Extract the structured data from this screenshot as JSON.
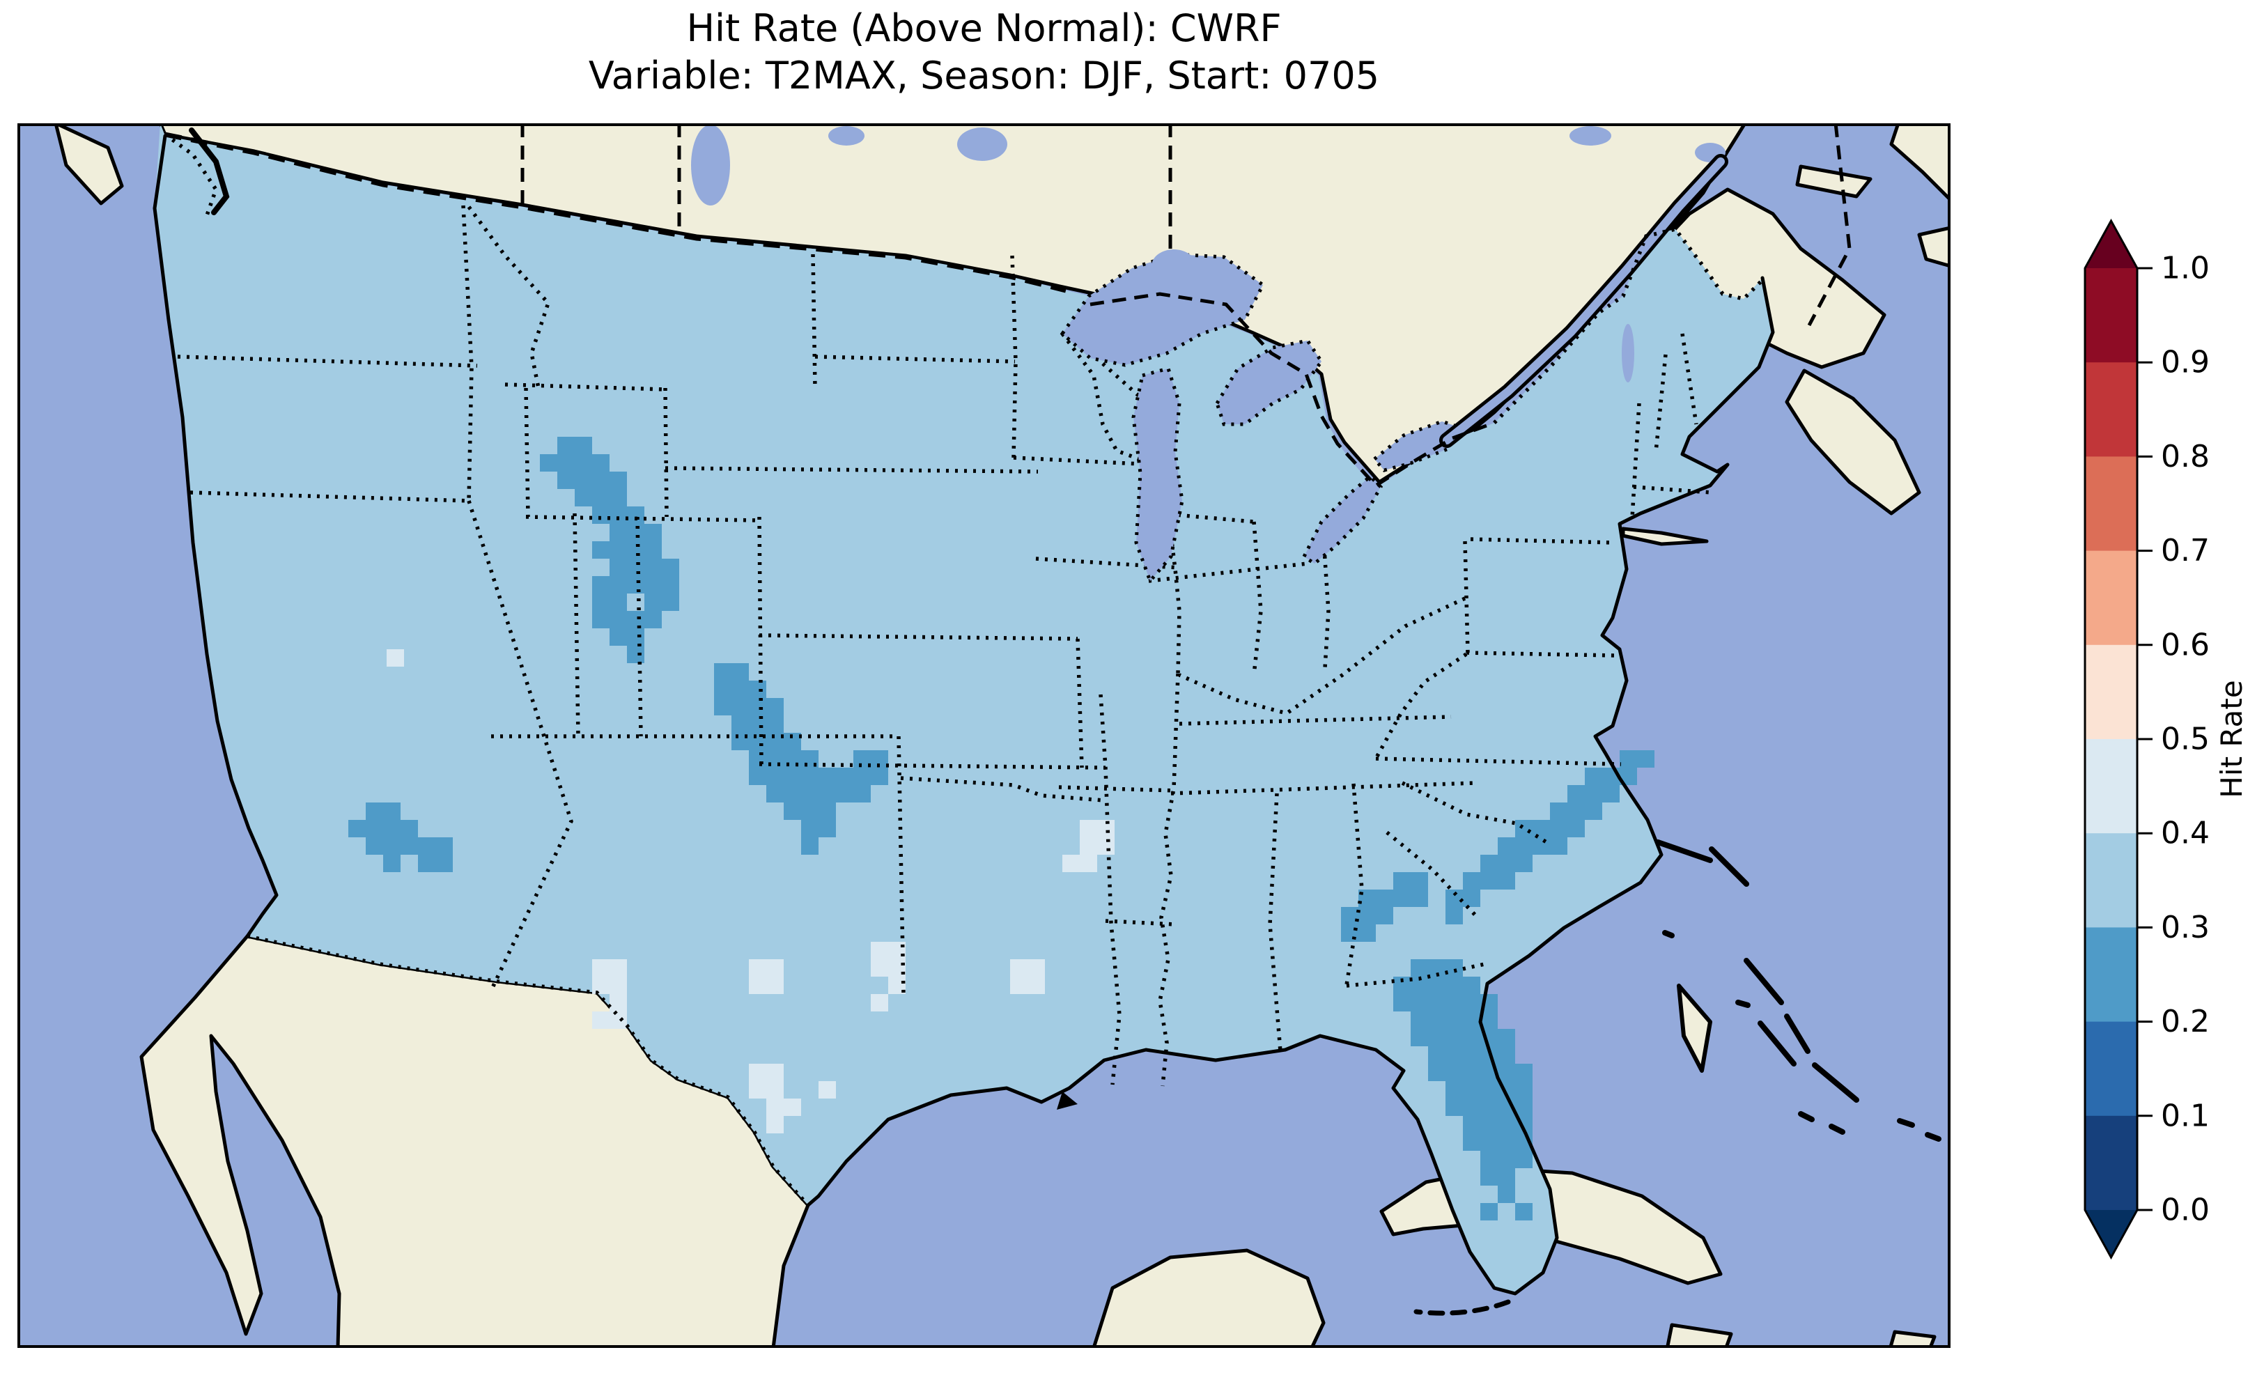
{
  "title": {
    "line1": "Hit Rate (Above Normal): CWRF",
    "line2": "Variable: T2MAX, Season: DJF, Start: 0705"
  },
  "colorbar": {
    "label": "Hit Rate",
    "ticks": [
      "1.0",
      "0.9",
      "0.8",
      "0.7",
      "0.6",
      "0.5",
      "0.4",
      "0.3",
      "0.2",
      "0.1",
      "0.0"
    ],
    "segment_colors_top_to_bottom": [
      "#8e0c25",
      "#c13639",
      "#dc6e57",
      "#f4a98a",
      "#fbe3d4",
      "#dbe9f2",
      "#a3cce3",
      "#4f9bc8",
      "#2b6bae",
      "#16407c"
    ],
    "over_color": "#67001f",
    "under_color": "#053061"
  },
  "map_colors": {
    "ocean": "#94aadb",
    "land": "#f0eedb",
    "us_base_bin_03_04": "#a3cce3",
    "dark_bin_02_03": "#4f9bc8",
    "light_bin_04_05": "#dbe9f2"
  },
  "cells": {
    "size": 25,
    "dark": [
      [
        775,
        450
      ],
      [
        800,
        450
      ],
      [
        750,
        475
      ],
      [
        775,
        475
      ],
      [
        800,
        475
      ],
      [
        825,
        475
      ],
      [
        775,
        500
      ],
      [
        800,
        500
      ],
      [
        825,
        500
      ],
      [
        850,
        500
      ],
      [
        800,
        525
      ],
      [
        825,
        525
      ],
      [
        850,
        525
      ],
      [
        825,
        550
      ],
      [
        850,
        550
      ],
      [
        875,
        550
      ],
      [
        850,
        575
      ],
      [
        875,
        575
      ],
      [
        900,
        575
      ],
      [
        825,
        600
      ],
      [
        850,
        600
      ],
      [
        875,
        600
      ],
      [
        900,
        600
      ],
      [
        850,
        625
      ],
      [
        875,
        625
      ],
      [
        900,
        625
      ],
      [
        925,
        625
      ],
      [
        825,
        650
      ],
      [
        850,
        650
      ],
      [
        875,
        650
      ],
      [
        900,
        650
      ],
      [
        925,
        650
      ],
      [
        825,
        675
      ],
      [
        850,
        675
      ],
      [
        900,
        675
      ],
      [
        925,
        675
      ],
      [
        825,
        700
      ],
      [
        850,
        700
      ],
      [
        875,
        700
      ],
      [
        900,
        700
      ],
      [
        850,
        725
      ],
      [
        875,
        725
      ],
      [
        875,
        750
      ],
      [
        1000,
        775
      ],
      [
        1025,
        775
      ],
      [
        1000,
        800
      ],
      [
        1025,
        800
      ],
      [
        1050,
        800
      ],
      [
        1000,
        825
      ],
      [
        1025,
        825
      ],
      [
        1050,
        825
      ],
      [
        1075,
        825
      ],
      [
        1025,
        850
      ],
      [
        1050,
        850
      ],
      [
        1075,
        850
      ],
      [
        1025,
        875
      ],
      [
        1050,
        875
      ],
      [
        1075,
        875
      ],
      [
        1100,
        875
      ],
      [
        1050,
        900
      ],
      [
        1075,
        900
      ],
      [
        1100,
        900
      ],
      [
        1125,
        900
      ],
      [
        1200,
        900
      ],
      [
        1225,
        900
      ],
      [
        1050,
        925
      ],
      [
        1075,
        925
      ],
      [
        1100,
        925
      ],
      [
        1125,
        925
      ],
      [
        1150,
        925
      ],
      [
        1175,
        925
      ],
      [
        1200,
        925
      ],
      [
        1225,
        925
      ],
      [
        1075,
        950
      ],
      [
        1100,
        950
      ],
      [
        1125,
        950
      ],
      [
        1150,
        950
      ],
      [
        1175,
        950
      ],
      [
        1200,
        950
      ],
      [
        1100,
        975
      ],
      [
        1125,
        975
      ],
      [
        1150,
        975
      ],
      [
        1125,
        1000
      ],
      [
        1150,
        1000
      ],
      [
        1125,
        1025
      ],
      [
        500,
        975
      ],
      [
        525,
        975
      ],
      [
        475,
        1000
      ],
      [
        500,
        1000
      ],
      [
        525,
        1000
      ],
      [
        550,
        1000
      ],
      [
        500,
        1025
      ],
      [
        525,
        1025
      ],
      [
        550,
        1025
      ],
      [
        575,
        1025
      ],
      [
        600,
        1025
      ],
      [
        525,
        1050
      ],
      [
        575,
        1050
      ],
      [
        600,
        1050
      ],
      [
        1975,
        1075
      ],
      [
        2000,
        1075
      ],
      [
        1925,
        1100
      ],
      [
        1950,
        1100
      ],
      [
        1975,
        1100
      ],
      [
        2000,
        1100
      ],
      [
        1900,
        1125
      ],
      [
        1925,
        1125
      ],
      [
        1950,
        1125
      ],
      [
        1900,
        1150
      ],
      [
        1925,
        1150
      ],
      [
        2300,
        900
      ],
      [
        2325,
        900
      ],
      [
        2250,
        925
      ],
      [
        2275,
        925
      ],
      [
        2300,
        925
      ],
      [
        2225,
        950
      ],
      [
        2250,
        950
      ],
      [
        2275,
        950
      ],
      [
        2200,
        975
      ],
      [
        2225,
        975
      ],
      [
        2250,
        975
      ],
      [
        2150,
        1000
      ],
      [
        2175,
        1000
      ],
      [
        2200,
        1000
      ],
      [
        2225,
        1000
      ],
      [
        2125,
        1025
      ],
      [
        2150,
        1025
      ],
      [
        2175,
        1025
      ],
      [
        2200,
        1025
      ],
      [
        2100,
        1050
      ],
      [
        2125,
        1050
      ],
      [
        2150,
        1050
      ],
      [
        2075,
        1075
      ],
      [
        2100,
        1075
      ],
      [
        2125,
        1075
      ],
      [
        2050,
        1100
      ],
      [
        2075,
        1100
      ],
      [
        2050,
        1125
      ],
      [
        2000,
        1200
      ],
      [
        2025,
        1200
      ],
      [
        2050,
        1200
      ],
      [
        1975,
        1225
      ],
      [
        2000,
        1225
      ],
      [
        2025,
        1225
      ],
      [
        2050,
        1225
      ],
      [
        2075,
        1225
      ],
      [
        1975,
        1250
      ],
      [
        2000,
        1250
      ],
      [
        2025,
        1250
      ],
      [
        2050,
        1250
      ],
      [
        2075,
        1250
      ],
      [
        2100,
        1250
      ],
      [
        2000,
        1275
      ],
      [
        2025,
        1275
      ],
      [
        2050,
        1275
      ],
      [
        2075,
        1275
      ],
      [
        2100,
        1275
      ],
      [
        2000,
        1300
      ],
      [
        2025,
        1300
      ],
      [
        2050,
        1300
      ],
      [
        2075,
        1300
      ],
      [
        2100,
        1300
      ],
      [
        2125,
        1300
      ],
      [
        2025,
        1325
      ],
      [
        2050,
        1325
      ],
      [
        2075,
        1325
      ],
      [
        2100,
        1325
      ],
      [
        2125,
        1325
      ],
      [
        2025,
        1350
      ],
      [
        2050,
        1350
      ],
      [
        2075,
        1350
      ],
      [
        2100,
        1350
      ],
      [
        2125,
        1350
      ],
      [
        2150,
        1350
      ],
      [
        2050,
        1375
      ],
      [
        2075,
        1375
      ],
      [
        2100,
        1375
      ],
      [
        2125,
        1375
      ],
      [
        2150,
        1375
      ],
      [
        2050,
        1400
      ],
      [
        2075,
        1400
      ],
      [
        2100,
        1400
      ],
      [
        2125,
        1400
      ],
      [
        2150,
        1400
      ],
      [
        2075,
        1425
      ],
      [
        2100,
        1425
      ],
      [
        2125,
        1425
      ],
      [
        2150,
        1425
      ],
      [
        2075,
        1450
      ],
      [
        2100,
        1450
      ],
      [
        2125,
        1450
      ],
      [
        2150,
        1450
      ],
      [
        2100,
        1475
      ],
      [
        2125,
        1475
      ],
      [
        2150,
        1475
      ],
      [
        2100,
        1500
      ],
      [
        2125,
        1500
      ],
      [
        2125,
        1525
      ],
      [
        2100,
        1550
      ],
      [
        2150,
        1550
      ]
    ],
    "light": [
      [
        530,
        755
      ],
      [
        1525,
        1000
      ],
      [
        1550,
        1000
      ],
      [
        1525,
        1025
      ],
      [
        1550,
        1025
      ],
      [
        1500,
        1050
      ],
      [
        1525,
        1050
      ],
      [
        825,
        1200
      ],
      [
        850,
        1200
      ],
      [
        825,
        1225
      ],
      [
        850,
        1225
      ],
      [
        850,
        1250
      ],
      [
        825,
        1275
      ],
      [
        850,
        1275
      ],
      [
        1050,
        1200
      ],
      [
        1075,
        1200
      ],
      [
        1050,
        1225
      ],
      [
        1075,
        1225
      ],
      [
        1225,
        1175
      ],
      [
        1250,
        1175
      ],
      [
        1225,
        1200
      ],
      [
        1250,
        1200
      ],
      [
        1250,
        1225
      ],
      [
        1225,
        1250
      ],
      [
        1425,
        1200
      ],
      [
        1450,
        1200
      ],
      [
        1425,
        1225
      ],
      [
        1450,
        1225
      ],
      [
        1050,
        1350
      ],
      [
        1075,
        1350
      ],
      [
        1050,
        1375
      ],
      [
        1075,
        1375
      ],
      [
        1075,
        1400
      ],
      [
        1100,
        1400
      ],
      [
        1075,
        1425
      ],
      [
        1150,
        1375
      ]
    ]
  },
  "chart_data": {
    "type": "heatmap",
    "title": "Hit Rate (Above Normal): CWRF",
    "subtitle": "Variable: T2MAX, Season: DJF, Start: 0705",
    "model": "CWRF",
    "variable": "T2MAX",
    "season": "DJF",
    "start": "0705",
    "metric": "Hit Rate (Above Normal)",
    "map_extent": "Contiguous United States (CONUS) with surrounding Canada, Mexico, Caribbean",
    "colorbar_label": "Hit Rate",
    "colorbar_ticks": [
      1.0,
      0.9,
      0.8,
      0.7,
      0.6,
      0.5,
      0.4,
      0.3,
      0.2,
      0.1,
      0.0
    ],
    "colorbar_extend": "both",
    "legend_position": "right",
    "grid": false,
    "bins": [
      {
        "range": [
          0.9,
          1.0
        ],
        "color": "#8e0c25"
      },
      {
        "range": [
          0.8,
          0.9
        ],
        "color": "#c13639"
      },
      {
        "range": [
          0.7,
          0.8
        ],
        "color": "#dc6e57"
      },
      {
        "range": [
          0.6,
          0.7
        ],
        "color": "#f4a98a"
      },
      {
        "range": [
          0.5,
          0.6
        ],
        "color": "#fbe3d4"
      },
      {
        "range": [
          0.4,
          0.5
        ],
        "color": "#dbe9f2"
      },
      {
        "range": [
          0.3,
          0.4
        ],
        "color": "#a3cce3"
      },
      {
        "range": [
          0.2,
          0.3
        ],
        "color": "#4f9bc8"
      },
      {
        "range": [
          0.1,
          0.2
        ],
        "color": "#2b6bae"
      },
      {
        "range": [
          0.0,
          0.1
        ],
        "color": "#16407c"
      }
    ],
    "regions": [
      {
        "area": "most of CONUS",
        "hit_rate_bin": "0.3-0.4"
      },
      {
        "area": "Wyoming into northwest Colorado (Rockies band)",
        "hit_rate_bin": "0.2-0.3"
      },
      {
        "area": "central Kansas into Oklahoma band",
        "hit_rate_bin": "0.2-0.3"
      },
      {
        "area": "west-central Arizona patch",
        "hit_rate_bin": "0.2-0.3"
      },
      {
        "area": "central Georgia band",
        "hit_rate_bin": "0.2-0.3"
      },
      {
        "area": "Carolinas coastal strip",
        "hit_rate_bin": "0.2-0.3"
      },
      {
        "area": "Florida peninsula",
        "hit_rate_bin": "0.2-0.3"
      },
      {
        "area": "west Texas (Big Bend) patch",
        "hit_rate_bin": "0.4-0.5"
      },
      {
        "area": "central Texas patch",
        "hit_rate_bin": "0.4-0.5"
      },
      {
        "area": "south Texas patch",
        "hit_rate_bin": "0.4-0.5"
      },
      {
        "area": "east Texas / northern Louisiana patches",
        "hit_rate_bin": "0.4-0.5"
      },
      {
        "area": "southern Missouri patch",
        "hit_rate_bin": "0.4-0.5"
      },
      {
        "area": "central Utah spot",
        "hit_rate_bin": "0.4-0.5"
      }
    ]
  }
}
